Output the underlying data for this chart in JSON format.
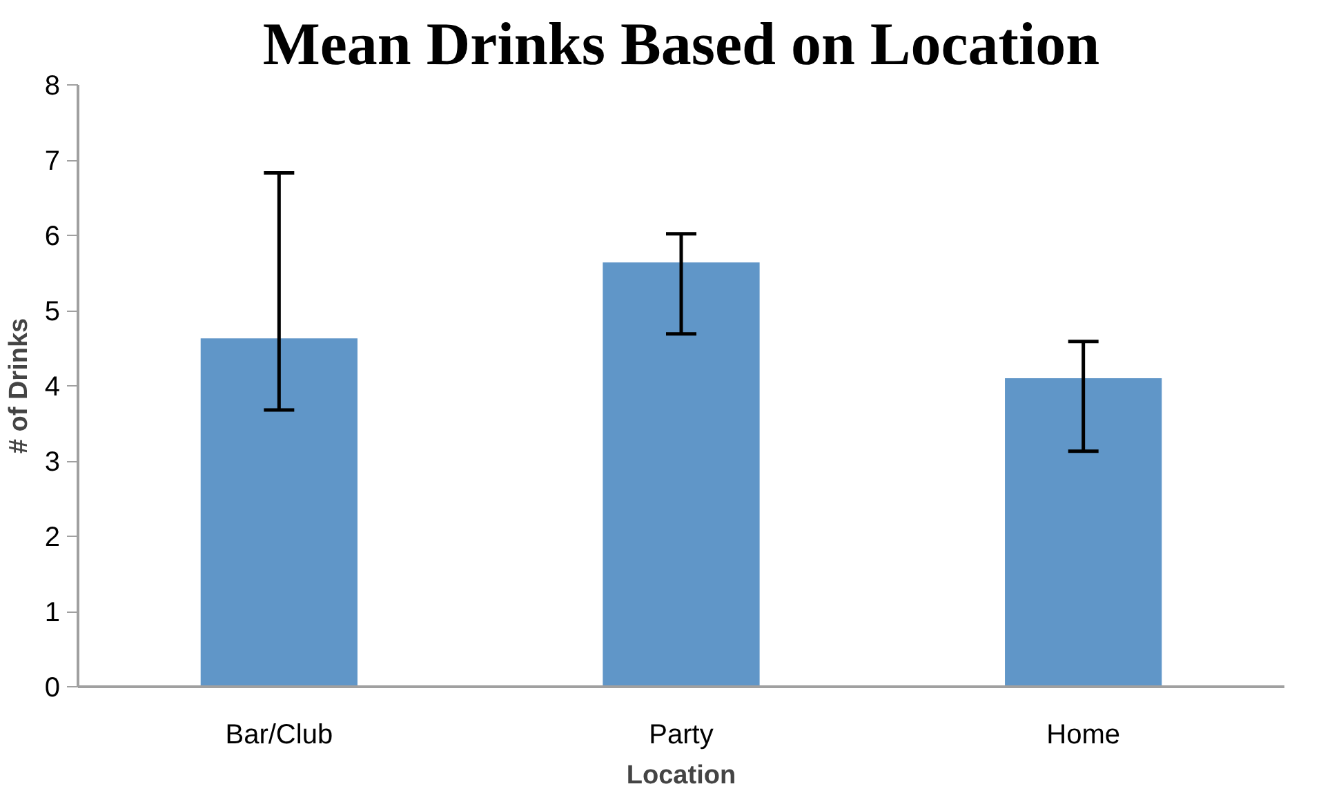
{
  "chart_data": {
    "type": "bar",
    "title": "Mean Drinks Based on Location",
    "xlabel": "Location",
    "ylabel": "# of Drinks",
    "categories": [
      "Bar/Club",
      "Party",
      "Home"
    ],
    "values": [
      4.63,
      5.64,
      4.1
    ],
    "color": "#6096c8",
    "errors": [
      [
        3.68,
        6.83
      ],
      [
        4.69,
        6.02
      ],
      [
        3.13,
        4.59
      ]
    ],
    "ylim": [
      0,
      8
    ],
    "yticks": [
      0,
      1,
      2,
      3,
      4,
      5,
      6,
      7,
      8
    ],
    "grid": false
  }
}
